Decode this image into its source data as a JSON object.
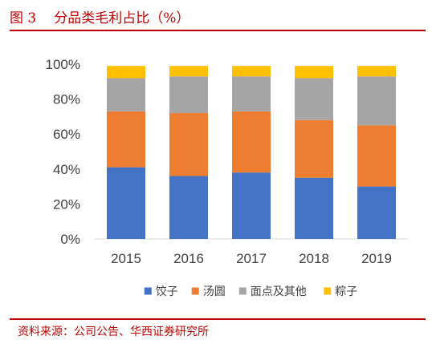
{
  "figure": {
    "number": "图 3",
    "title": "分品类毛利占比（%）",
    "source": "资料来源：公司公告、华西证券研究所"
  },
  "chart_data": {
    "type": "bar",
    "stacked": true,
    "categories": [
      "2015",
      "2016",
      "2017",
      "2018",
      "2019"
    ],
    "series": [
      {
        "name": "饺子",
        "color": "#4472c4",
        "values": [
          0.41,
          0.36,
          0.38,
          0.35,
          0.3
        ]
      },
      {
        "name": "汤圆",
        "color": "#ed7d31",
        "values": [
          0.32,
          0.36,
          0.35,
          0.33,
          0.35
        ]
      },
      {
        "name": "面点及其他",
        "color": "#a5a5a5",
        "values": [
          0.19,
          0.21,
          0.2,
          0.24,
          0.28
        ]
      },
      {
        "name": "粽子",
        "color": "#ffc000",
        "values": [
          0.07,
          0.06,
          0.06,
          0.07,
          0.06
        ]
      }
    ],
    "y_ticks": [
      "0%",
      "20%",
      "40%",
      "60%",
      "80%",
      "100%"
    ],
    "ylim": [
      0,
      1
    ],
    "grid": false,
    "legend": "bottom"
  }
}
